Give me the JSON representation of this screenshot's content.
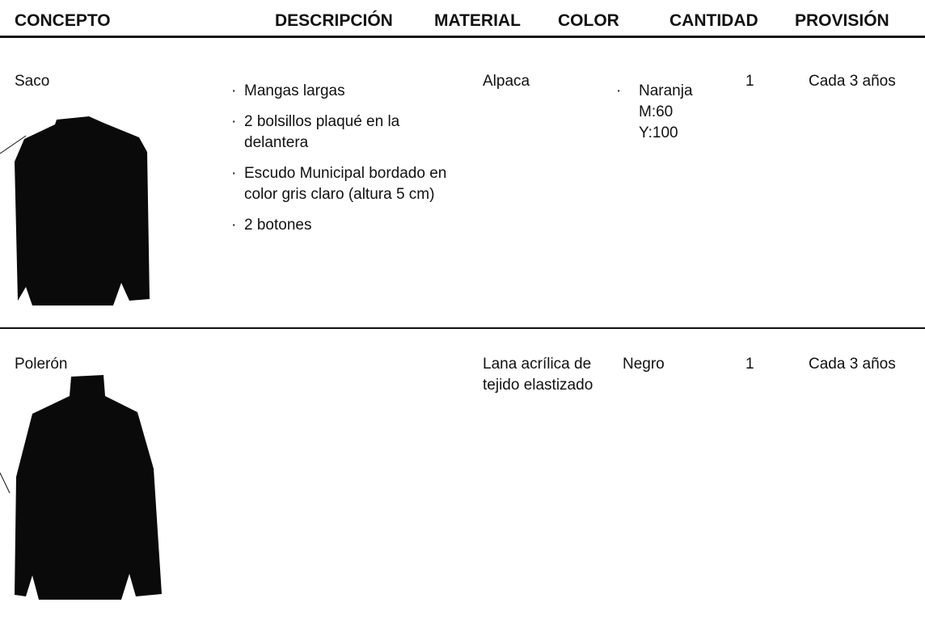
{
  "table": {
    "columns": [
      "CONCEPTO",
      "DESCRIPCIÓN",
      "MATERIAL",
      "COLOR",
      "CANTIDAD",
      "PROVISIÓN"
    ],
    "rows": [
      {
        "concepto": "Saco",
        "descripcion": [
          "Mangas largas",
          "2 bolsillos plaqué en la delantera",
          "Escudo Municipal bordado en color gris claro (altura 5 cm)",
          "2 botones"
        ],
        "material": "Alpaca",
        "color": [
          "Naranja",
          "M:60",
          "Y:100"
        ],
        "cantidad": 1,
        "provision": "Cada 3 años"
      },
      {
        "concepto": "Polerón",
        "material": "Lana acrílica de tejido elastizado",
        "color": [
          "Negro"
        ],
        "cantidad": 1,
        "provision": "Cada 3 años"
      }
    ]
  }
}
